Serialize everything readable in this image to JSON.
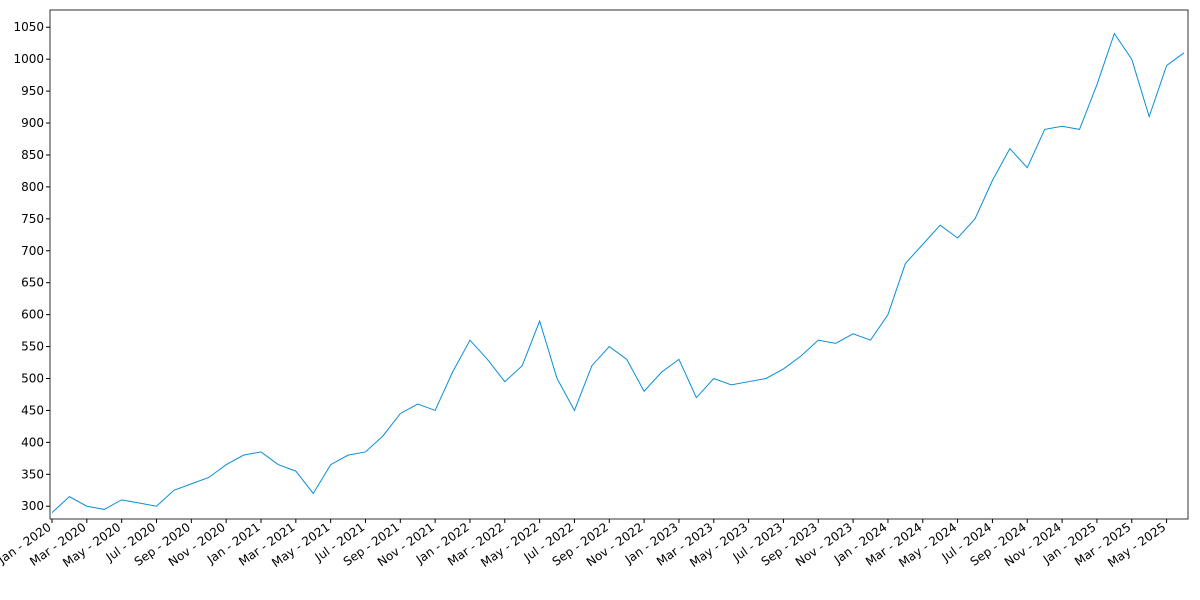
{
  "chart_data": {
    "type": "line",
    "x": [
      "2020-01",
      "2020-02",
      "2020-03",
      "2020-04",
      "2020-05",
      "2020-06",
      "2020-07",
      "2020-08",
      "2020-09",
      "2020-10",
      "2020-11",
      "2020-12",
      "2021-01",
      "2021-02",
      "2021-03",
      "2021-04",
      "2021-05",
      "2021-06",
      "2021-07",
      "2021-08",
      "2021-09",
      "2021-10",
      "2021-11",
      "2021-12",
      "2022-01",
      "2022-02",
      "2022-03",
      "2022-04",
      "2022-05",
      "2022-06",
      "2022-07",
      "2022-08",
      "2022-09",
      "2022-10",
      "2022-11",
      "2022-12",
      "2023-01",
      "2023-02",
      "2023-03",
      "2023-04",
      "2023-05",
      "2023-06",
      "2023-07",
      "2023-08",
      "2023-09",
      "2023-10",
      "2023-11",
      "2023-12",
      "2024-01",
      "2024-02",
      "2024-03",
      "2024-04",
      "2024-05",
      "2024-06",
      "2024-07",
      "2024-08",
      "2024-09",
      "2024-10",
      "2024-11",
      "2024-12",
      "2025-01",
      "2025-02",
      "2025-03",
      "2025-04",
      "2025-05",
      "2025-06"
    ],
    "series": [
      {
        "color": "#0a8fd6",
        "values": [
          290,
          315,
          300,
          295,
          310,
          305,
          300,
          325,
          335,
          345,
          365,
          380,
          385,
          365,
          355,
          320,
          365,
          380,
          385,
          410,
          445,
          460,
          450,
          510,
          560,
          530,
          495,
          520,
          590,
          500,
          450,
          520,
          550,
          530,
          480,
          510,
          530,
          470,
          500,
          490,
          495,
          500,
          515,
          535,
          560,
          555,
          570,
          560,
          600,
          680,
          710,
          740,
          720,
          750,
          810,
          860,
          830,
          890,
          895,
          890,
          960,
          1040,
          1000,
          910,
          990,
          1010
        ]
      }
    ],
    "xlim": [
      "2020-01",
      "2025-06"
    ],
    "xticks": [
      {
        "value": "2020-01",
        "label": "Jan - 2020"
      },
      {
        "value": "2020-03",
        "label": "Mar - 2020"
      },
      {
        "value": "2020-05",
        "label": "May - 2020"
      },
      {
        "value": "2020-07",
        "label": "Jul - 2020"
      },
      {
        "value": "2020-09",
        "label": "Sep - 2020"
      },
      {
        "value": "2020-11",
        "label": "Nov - 2020"
      },
      {
        "value": "2021-01",
        "label": "Jan - 2021"
      },
      {
        "value": "2021-03",
        "label": "Mar - 2021"
      },
      {
        "value": "2021-05",
        "label": "May - 2021"
      },
      {
        "value": "2021-07",
        "label": "Jul - 2021"
      },
      {
        "value": "2021-09",
        "label": "Sep - 2021"
      },
      {
        "value": "2021-11",
        "label": "Nov - 2021"
      },
      {
        "value": "2022-01",
        "label": "Jan - 2022"
      },
      {
        "value": "2022-03",
        "label": "Mar - 2022"
      },
      {
        "value": "2022-05",
        "label": "May - 2022"
      },
      {
        "value": "2022-07",
        "label": "Jul - 2022"
      },
      {
        "value": "2022-09",
        "label": "Sep - 2022"
      },
      {
        "value": "2022-11",
        "label": "Nov - 2022"
      },
      {
        "value": "2023-01",
        "label": "Jan - 2023"
      },
      {
        "value": "2023-03",
        "label": "Mar - 2023"
      },
      {
        "value": "2023-05",
        "label": "May - 2023"
      },
      {
        "value": "2023-07",
        "label": "Jul - 2023"
      },
      {
        "value": "2023-09",
        "label": "Sep - 2023"
      },
      {
        "value": "2023-11",
        "label": "Nov - 2023"
      },
      {
        "value": "2024-01",
        "label": "Jan - 2024"
      },
      {
        "value": "2024-03",
        "label": "Mar - 2024"
      },
      {
        "value": "2024-05",
        "label": "May - 2024"
      },
      {
        "value": "2024-07",
        "label": "Jul - 2024"
      },
      {
        "value": "2024-09",
        "label": "Sep - 2024"
      },
      {
        "value": "2024-11",
        "label": "Nov - 2024"
      },
      {
        "value": "2025-01",
        "label": "Jan - 2025"
      },
      {
        "value": "2025-03",
        "label": "Mar - 2025"
      },
      {
        "value": "2025-05",
        "label": "May - 2025"
      }
    ],
    "ylim": [
      280,
      1077
    ],
    "yticks": [
      300,
      350,
      400,
      450,
      500,
      550,
      600,
      650,
      700,
      750,
      800,
      850,
      900,
      950,
      1000,
      1050
    ],
    "grid": false
  }
}
